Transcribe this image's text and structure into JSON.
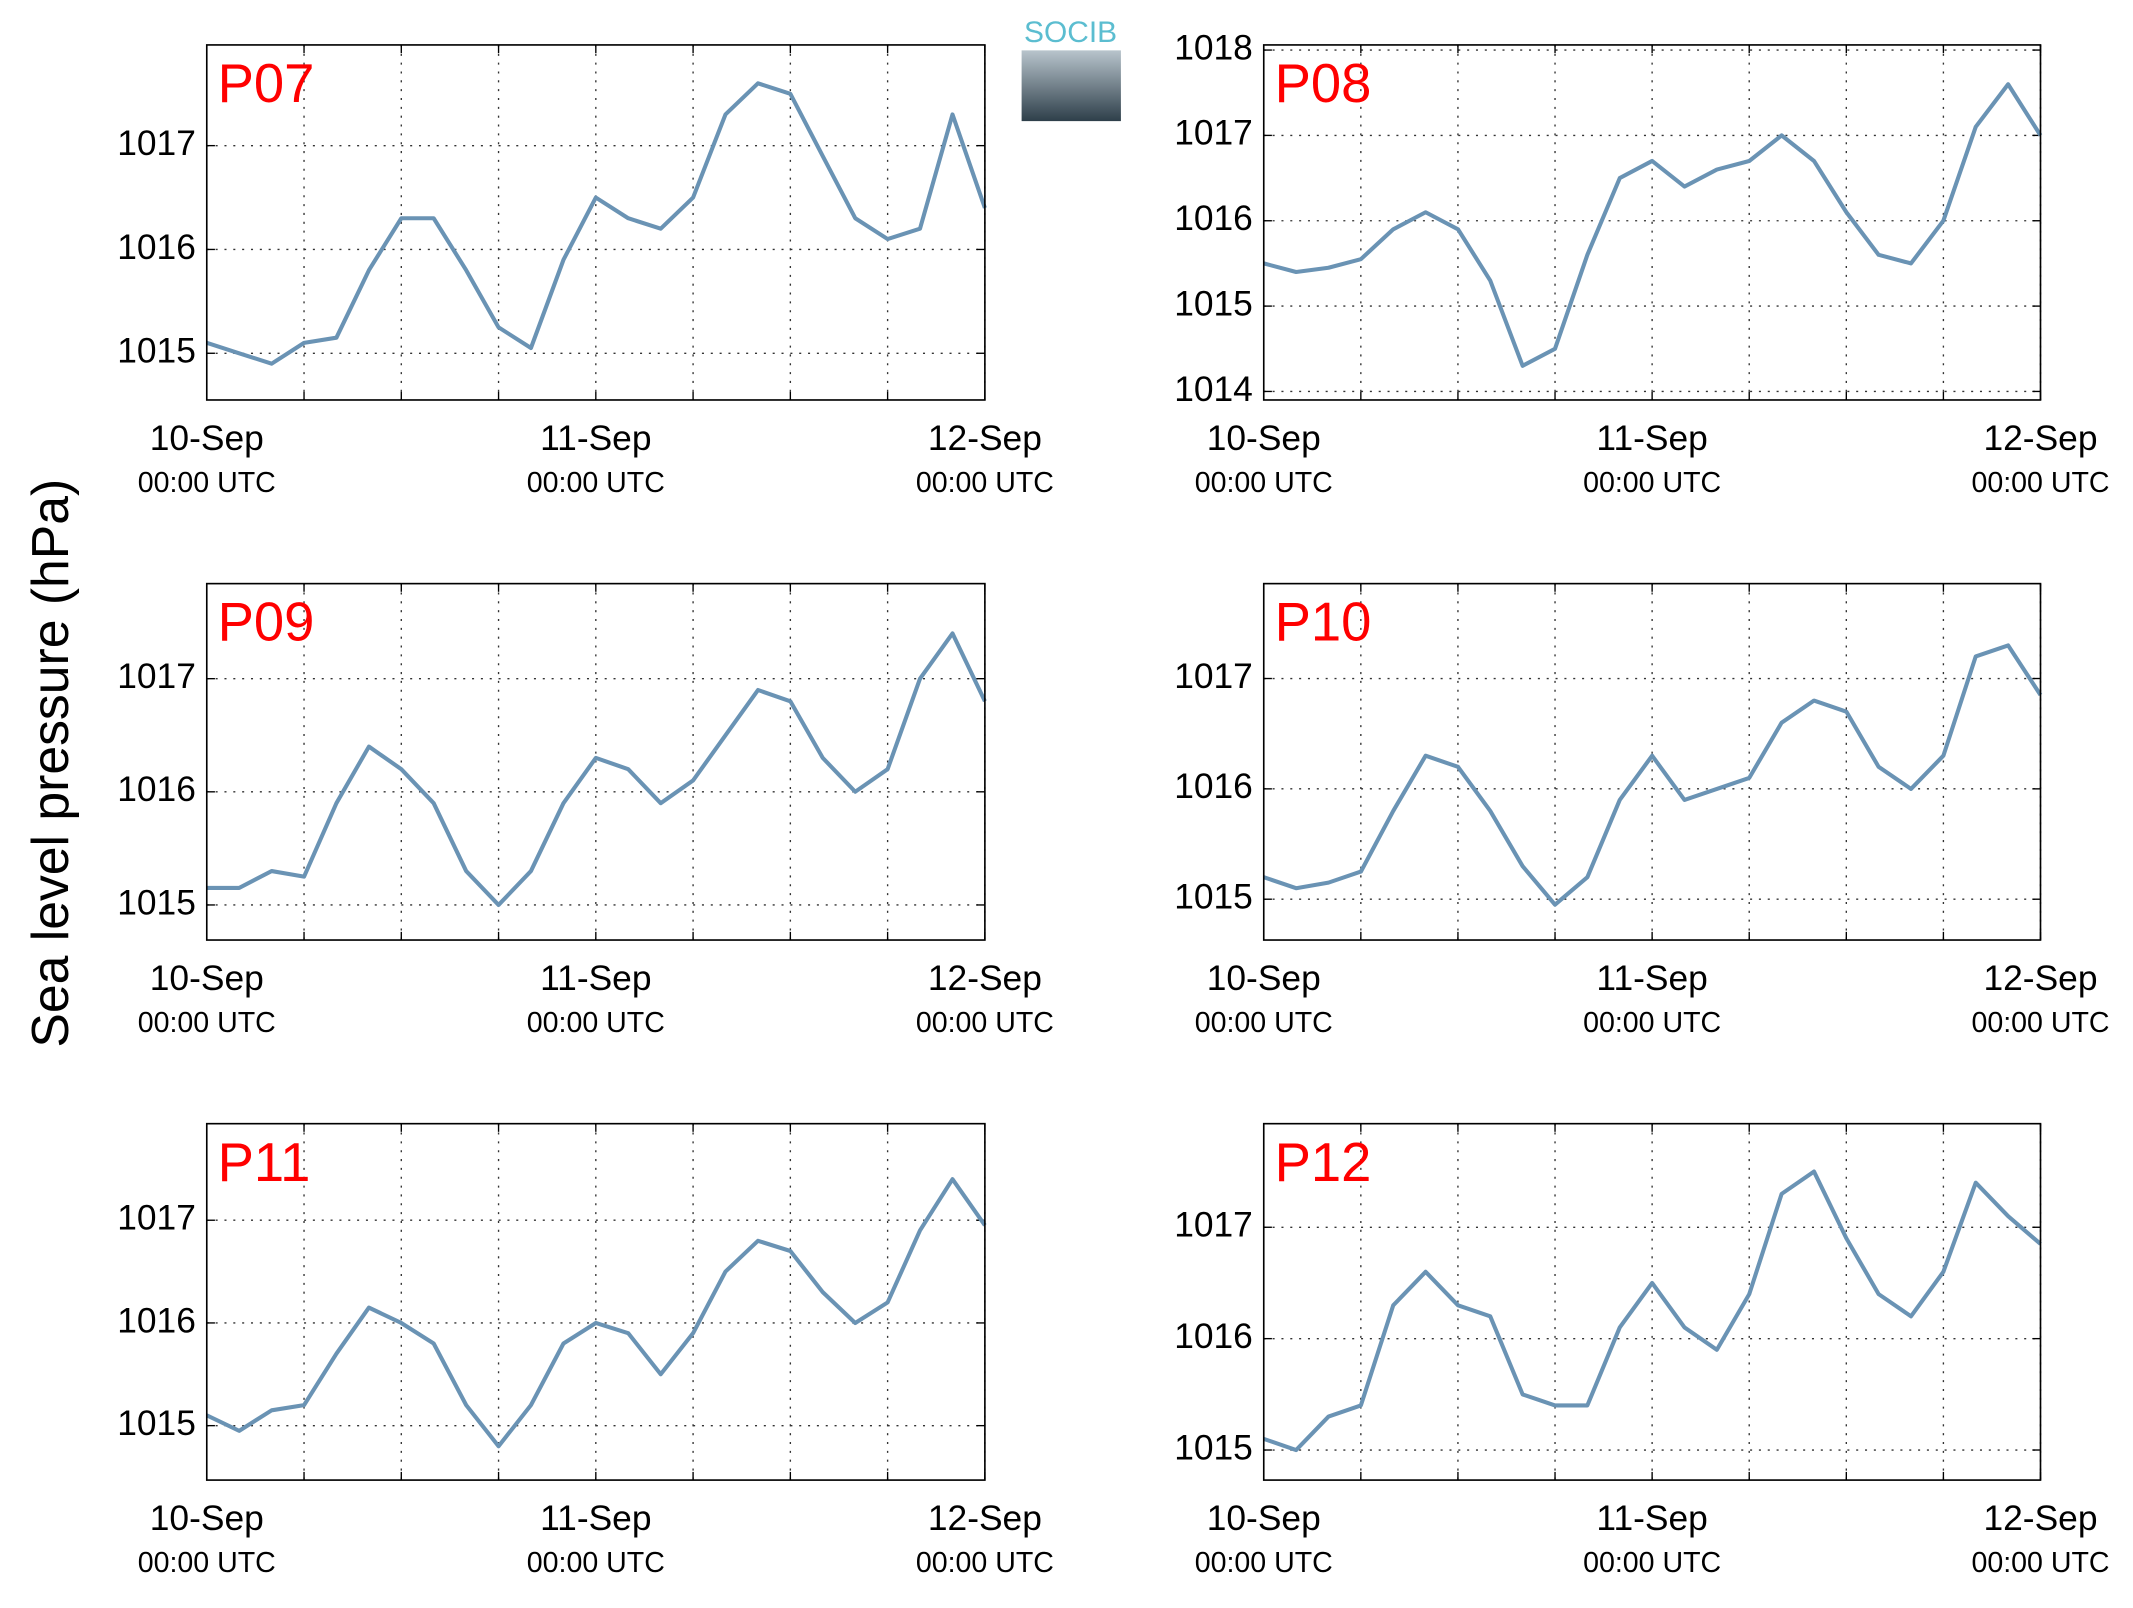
{
  "ylabel": "Sea level pressure (hPa)",
  "logo": "SOCIB",
  "chart_data": [
    {
      "type": "line",
      "title": "P07",
      "color": "#6a93b4",
      "grid": true,
      "x": [
        0,
        2,
        4,
        6,
        8,
        10,
        12,
        14,
        16,
        18,
        20,
        22,
        24,
        26,
        28,
        30,
        32,
        34,
        36,
        38,
        40,
        42,
        44,
        46,
        48
      ],
      "values": [
        1015.1,
        1015.0,
        1014.9,
        1015.1,
        1015.15,
        1015.8,
        1016.3,
        1016.3,
        1015.8,
        1015.25,
        1015.05,
        1015.9,
        1016.5,
        1016.3,
        1016.2,
        1016.5,
        1017.3,
        1017.6,
        1017.5,
        1016.9,
        1016.3,
        1016.1,
        1016.2,
        1017.3,
        1016.4
      ],
      "xlim": [
        0,
        48
      ],
      "xticks": [
        {
          "value": 0,
          "label": "10-Sep",
          "sublabel": "00:00 UTC"
        },
        {
          "value": 24,
          "label": "11-Sep",
          "sublabel": "00:00 UTC"
        },
        {
          "value": 48,
          "label": "12-Sep",
          "sublabel": "00:00 UTC"
        }
      ],
      "xminor": [
        6,
        12,
        18,
        30,
        36,
        42
      ],
      "ylim": [
        1014.55,
        1017.97
      ],
      "yticks": [
        1015,
        1016,
        1017
      ]
    },
    {
      "type": "line",
      "title": "P08",
      "color": "#6a93b4",
      "grid": true,
      "x": [
        0,
        2,
        4,
        6,
        8,
        10,
        12,
        14,
        16,
        18,
        20,
        22,
        24,
        26,
        28,
        30,
        32,
        34,
        36,
        38,
        40,
        42,
        44,
        46,
        48
      ],
      "values": [
        1015.5,
        1015.4,
        1015.45,
        1015.55,
        1015.9,
        1016.1,
        1015.9,
        1015.3,
        1014.3,
        1014.5,
        1015.6,
        1016.5,
        1016.7,
        1016.4,
        1016.6,
        1016.7,
        1017.0,
        1016.7,
        1016.1,
        1015.6,
        1015.5,
        1016.0,
        1017.1,
        1017.6,
        1017.0
      ],
      "xlim": [
        0,
        48
      ],
      "xticks": [
        {
          "value": 0,
          "label": "10-Sep",
          "sublabel": "00:00 UTC"
        },
        {
          "value": 24,
          "label": "11-Sep",
          "sublabel": "00:00 UTC"
        },
        {
          "value": 48,
          "label": "12-Sep",
          "sublabel": "00:00 UTC"
        }
      ],
      "xminor": [
        6,
        12,
        18,
        30,
        36,
        42
      ],
      "ylim": [
        1013.9,
        1018.06
      ],
      "yticks": [
        1014,
        1015,
        1016,
        1017,
        1018
      ]
    },
    {
      "type": "line",
      "title": "P09",
      "color": "#6a93b4",
      "grid": true,
      "x": [
        0,
        2,
        4,
        6,
        8,
        10,
        12,
        14,
        16,
        18,
        20,
        22,
        24,
        26,
        28,
        30,
        32,
        34,
        36,
        38,
        40,
        42,
        44,
        46,
        48
      ],
      "values": [
        1015.15,
        1015.15,
        1015.3,
        1015.25,
        1015.9,
        1016.4,
        1016.2,
        1015.9,
        1015.3,
        1015.0,
        1015.3,
        1015.9,
        1016.3,
        1016.2,
        1015.9,
        1016.1,
        1016.5,
        1016.9,
        1016.8,
        1016.3,
        1016.0,
        1016.2,
        1017.0,
        1017.4,
        1016.8
      ],
      "xlim": [
        0,
        48
      ],
      "xticks": [
        {
          "value": 0,
          "label": "10-Sep",
          "sublabel": "00:00 UTC"
        },
        {
          "value": 24,
          "label": "11-Sep",
          "sublabel": "00:00 UTC"
        },
        {
          "value": 48,
          "label": "12-Sep",
          "sublabel": "00:00 UTC"
        }
      ],
      "xminor": [
        6,
        12,
        18,
        30,
        36,
        42
      ],
      "ylim": [
        1014.69,
        1017.84
      ],
      "yticks": [
        1015,
        1016,
        1017
      ]
    },
    {
      "type": "line",
      "title": "P10",
      "color": "#6a93b4",
      "grid": true,
      "x": [
        0,
        2,
        4,
        6,
        8,
        10,
        12,
        14,
        16,
        18,
        20,
        22,
        24,
        26,
        28,
        30,
        32,
        34,
        36,
        38,
        40,
        42,
        44,
        46,
        48
      ],
      "values": [
        1015.2,
        1015.1,
        1015.15,
        1015.25,
        1015.8,
        1016.3,
        1016.2,
        1015.8,
        1015.3,
        1014.95,
        1015.2,
        1015.9,
        1016.3,
        1015.9,
        1016.0,
        1016.1,
        1016.6,
        1016.8,
        1016.7,
        1016.2,
        1016.0,
        1016.3,
        1017.2,
        1017.3,
        1016.85
      ],
      "xlim": [
        0,
        48
      ],
      "xticks": [
        {
          "value": 0,
          "label": "10-Sep",
          "sublabel": "00:00 UTC"
        },
        {
          "value": 24,
          "label": "11-Sep",
          "sublabel": "00:00 UTC"
        },
        {
          "value": 48,
          "label": "12-Sep",
          "sublabel": "00:00 UTC"
        }
      ],
      "xminor": [
        6,
        12,
        18,
        30,
        36,
        42
      ],
      "ylim": [
        1014.63,
        1017.86
      ],
      "yticks": [
        1015,
        1016,
        1017
      ]
    },
    {
      "type": "line",
      "title": "P11",
      "color": "#6a93b4",
      "grid": true,
      "x": [
        0,
        2,
        4,
        6,
        8,
        10,
        12,
        14,
        16,
        18,
        20,
        22,
        24,
        26,
        28,
        30,
        32,
        34,
        36,
        38,
        40,
        42,
        44,
        46,
        48
      ],
      "values": [
        1015.1,
        1014.95,
        1015.15,
        1015.2,
        1015.7,
        1016.15,
        1016.0,
        1015.8,
        1015.2,
        1014.8,
        1015.2,
        1015.8,
        1016.0,
        1015.9,
        1015.5,
        1015.9,
        1016.5,
        1016.8,
        1016.7,
        1016.3,
        1016.0,
        1016.2,
        1016.9,
        1017.4,
        1016.95
      ],
      "xlim": [
        0,
        48
      ],
      "xticks": [
        {
          "value": 0,
          "label": "10-Sep",
          "sublabel": "00:00 UTC"
        },
        {
          "value": 24,
          "label": "11-Sep",
          "sublabel": "00:00 UTC"
        },
        {
          "value": 48,
          "label": "12-Sep",
          "sublabel": "00:00 UTC"
        }
      ],
      "xminor": [
        6,
        12,
        18,
        30,
        36,
        42
      ],
      "ylim": [
        1014.47,
        1017.94
      ],
      "yticks": [
        1015,
        1016,
        1017
      ]
    },
    {
      "type": "line",
      "title": "P12",
      "color": "#6a93b4",
      "grid": true,
      "x": [
        0,
        2,
        4,
        6,
        8,
        10,
        12,
        14,
        16,
        18,
        20,
        22,
        24,
        26,
        28,
        30,
        32,
        34,
        36,
        38,
        40,
        42,
        44,
        46,
        48
      ],
      "values": [
        1015.1,
        1015.0,
        1015.3,
        1015.4,
        1016.3,
        1016.6,
        1016.3,
        1016.2,
        1015.5,
        1015.4,
        1015.4,
        1016.1,
        1016.5,
        1016.1,
        1015.9,
        1016.4,
        1017.3,
        1017.5,
        1016.9,
        1016.4,
        1016.2,
        1016.6,
        1017.4,
        1017.1,
        1016.85
      ],
      "xlim": [
        0,
        48
      ],
      "xticks": [
        {
          "value": 0,
          "label": "10-Sep",
          "sublabel": "00:00 UTC"
        },
        {
          "value": 24,
          "label": "11-Sep",
          "sublabel": "00:00 UTC"
        },
        {
          "value": 48,
          "label": "12-Sep",
          "sublabel": "00:00 UTC"
        }
      ],
      "xminor": [
        6,
        12,
        18,
        30,
        36,
        42
      ],
      "ylim": [
        1014.73,
        1017.93
      ],
      "yticks": [
        1015,
        1016,
        1017
      ]
    }
  ]
}
